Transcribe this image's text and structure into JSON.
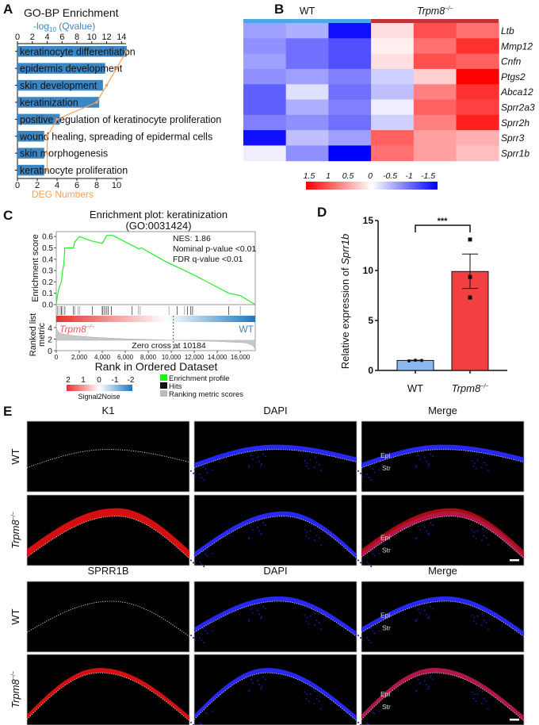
{
  "panel_labels": {
    "a": "A",
    "b": "B",
    "c": "C",
    "d": "D",
    "e": "E"
  },
  "chart_data": [
    {
      "type": "bar",
      "title": "GO-BP Enrichment",
      "xlabel_top": {
        "prefix": "-log",
        "sub": "10",
        "suffix": " (Qvalue)"
      },
      "xlabel_bottom": "DEG Numbers",
      "categories": [
        "keratinocyte differentiation",
        "epidermis development",
        "skin development",
        "keratinization",
        "positive regulation of keratinocyte proliferation",
        "wound healing, spreading of epidermal cells",
        "skin morphogenesis",
        "keratinocyte proliferation"
      ],
      "values": [
        14.7,
        11.8,
        11.5,
        11.0,
        5.7,
        3.6,
        3.6,
        3.6
      ],
      "deg_numbers": [
        11,
        10,
        9,
        8,
        4,
        3,
        3,
        3
      ],
      "top_ticks": [
        0,
        2,
        4,
        6,
        8,
        10,
        12,
        14
      ],
      "bottom_ticks": [
        0,
        2,
        4,
        6,
        8,
        10
      ],
      "bar_color": "#3d86c4",
      "line_color": "#f6a05a"
    },
    {
      "type": "heatmap",
      "groups": [
        {
          "name": "WT",
          "sup": "",
          "color": "#4aa8e8"
        },
        {
          "name": "Trpm8",
          "sup": "−/−",
          "color": "#c0343a"
        }
      ],
      "rows": [
        "Ltb",
        "Mmp12",
        "Cnfn",
        "Ptgs2",
        "Abca12",
        "Sprr2a3",
        "Sprr2h",
        "Sprr3",
        "Sprr1b"
      ],
      "values": [
        [
          -0.6,
          -0.5,
          -1.5,
          0.2,
          1.1,
          0.9
        ],
        [
          -0.7,
          -0.9,
          -1.1,
          0.1,
          0.9,
          1.3
        ],
        [
          -0.6,
          -0.9,
          -1.1,
          0.2,
          1.1,
          1.0
        ],
        [
          -0.7,
          -0.6,
          -0.8,
          -0.3,
          0.3,
          1.6
        ],
        [
          -1.0,
          -0.2,
          -0.9,
          -0.4,
          0.8,
          1.3
        ],
        [
          -1.0,
          -0.5,
          -0.8,
          -0.1,
          1.0,
          1.2
        ],
        [
          -0.8,
          -0.7,
          -0.9,
          -0.3,
          0.8,
          1.4
        ],
        [
          -1.5,
          -0.4,
          -0.6,
          1.0,
          0.6,
          0.5
        ],
        [
          -0.1,
          -0.7,
          -1.6,
          0.9,
          0.6,
          0.4
        ]
      ],
      "legend_ticks": [
        "1.5",
        "1",
        "0.5",
        "0",
        "-0.5",
        "-1",
        "-1.5"
      ],
      "range": [
        -1.6,
        1.6
      ]
    },
    {
      "type": "line",
      "title_line1": "Enrichment plot: keratinization",
      "title_line2": "(GO:0031424)",
      "ylabel": "Enrichment score",
      "ylabel2_line1": "Ranked list",
      "ylabel2_line2": "metric",
      "xlabel": "Rank in Ordered Dataset",
      "xlim": [
        0,
        17300
      ],
      "ylim": [
        0,
        0.635
      ],
      "y_ticks": [
        "0.0",
        "0.1",
        "0.2",
        "0.3",
        "0.4",
        "0.5",
        "0.6"
      ],
      "x_ticks": [
        "0",
        "2,000",
        "4,000",
        "6,000",
        "8,000",
        "10,000",
        "12,000",
        "14,000",
        "16,000"
      ],
      "metric_ticks": [
        "0",
        "2",
        "4"
      ],
      "es_curve": [
        [
          0,
          0
        ],
        [
          100,
          0.08
        ],
        [
          250,
          0.15
        ],
        [
          450,
          0.2
        ],
        [
          550,
          0.3
        ],
        [
          650,
          0.35
        ],
        [
          750,
          0.5
        ],
        [
          1500,
          0.5
        ],
        [
          1600,
          0.55
        ],
        [
          2000,
          0.6
        ],
        [
          3100,
          0.56
        ],
        [
          4000,
          0.54
        ],
        [
          4400,
          0.61
        ],
        [
          4900,
          0.61
        ],
        [
          7200,
          0.49
        ],
        [
          7400,
          0.5
        ],
        [
          9500,
          0.38
        ],
        [
          12000,
          0.26
        ],
        [
          15000,
          0.1
        ],
        [
          16000,
          0.08
        ],
        [
          17300,
          0
        ]
      ],
      "hits": [
        100,
        200,
        350,
        450,
        550,
        700,
        760,
        1500,
        1600,
        1900,
        2050,
        3150,
        3950,
        4050,
        4200,
        4350,
        4500,
        4800,
        6600,
        7150,
        7300,
        9800,
        10500,
        11150,
        11400,
        11700,
        11850,
        15000,
        16000
      ],
      "metric_curve": [
        [
          0,
          4.0
        ],
        [
          150,
          3.3
        ],
        [
          500,
          2.9
        ],
        [
          1500,
          2.6
        ],
        [
          3000,
          2.35
        ],
        [
          6000,
          2.05
        ],
        [
          10184,
          1.8
        ],
        [
          14000,
          1.6
        ],
        [
          16500,
          1.35
        ],
        [
          17100,
          0.9
        ],
        [
          17300,
          0.2
        ]
      ],
      "metric_baseline": 1.8,
      "stats": [
        "NES: 1.86",
        "Nominal p-value <0.01",
        "FDR q-value <0.01"
      ],
      "left_group": "Trpm8",
      "left_group_sup": "−/−",
      "right_group": "WT",
      "zero_cross_label": "Zero cross at 10184",
      "zero_cross": 10184,
      "legend_scale_ticks": [
        "2",
        "1",
        "0",
        "-1",
        "-2"
      ],
      "legend_scale_label": "Signal2Noise",
      "legend_items": [
        {
          "label": "Enrichment profile",
          "color": "#22ee22"
        },
        {
          "label": "Hits",
          "color": "#111111"
        },
        {
          "label": "Ranking metric scores",
          "color": "#bbbbbb"
        }
      ]
    },
    {
      "type": "bar",
      "ylabel_prefix": "Relative expression of ",
      "ylabel_gene": "Sprr1b",
      "categories": [
        {
          "name": "WT",
          "sup": ""
        },
        {
          "name": "Trpm8",
          "sup": "−/−"
        }
      ],
      "values": [
        1.0,
        9.9
      ],
      "sem_low": [
        0.97,
        8.2
      ],
      "sem_high": [
        1.03,
        11.65
      ],
      "points": [
        [
          0.95,
          1.02,
          1.0
        ],
        [
          13.1,
          9.35,
          7.3
        ]
      ],
      "colors": [
        "#8cb8f0",
        "#f24040"
      ],
      "ylim": [
        0,
        15
      ],
      "y_ticks": [
        "0",
        "5",
        "10",
        "15"
      ],
      "significance": "***"
    }
  ],
  "panel_e": {
    "blocks": [
      {
        "headers": [
          "K1",
          "DAPI",
          "Merge"
        ],
        "rows": [
          {
            "label": "WT",
            "sup": ""
          },
          {
            "label": "Trpm8",
            "sup": "−/−"
          }
        ]
      },
      {
        "headers": [
          "SPRR1B",
          "DAPI",
          "Merge"
        ],
        "rows": [
          {
            "label": "WT",
            "sup": ""
          },
          {
            "label": "Trpm8",
            "sup": "−/−"
          }
        ]
      }
    ],
    "epi_label": "Epi",
    "str_label": "Str"
  }
}
